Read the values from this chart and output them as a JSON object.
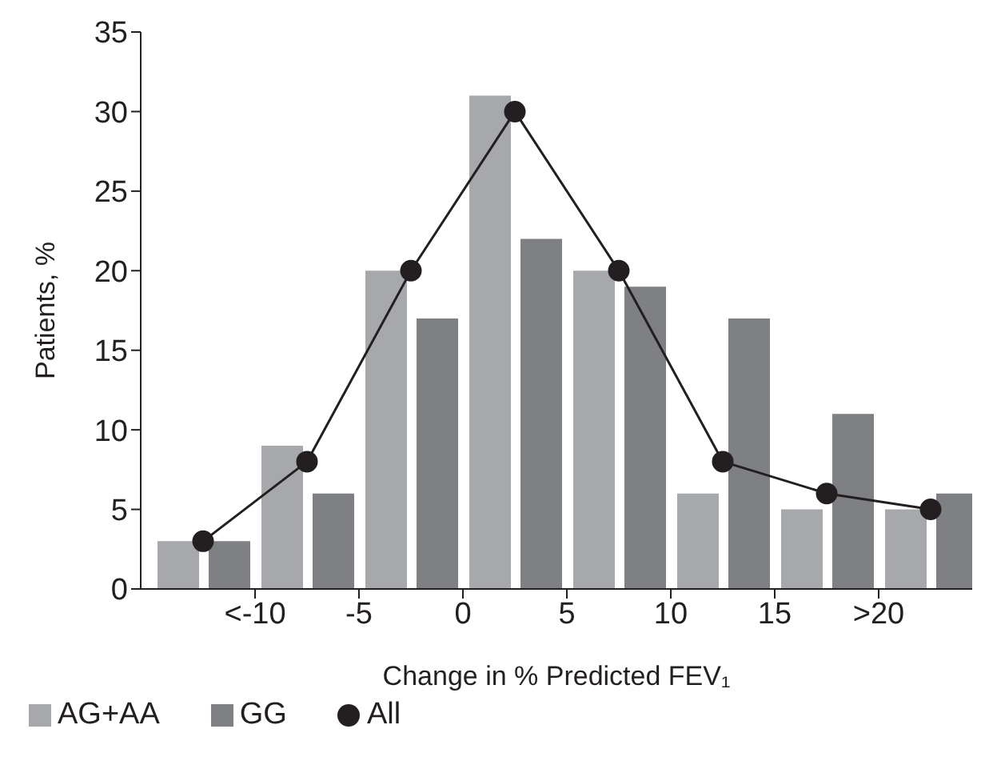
{
  "chart_data": {
    "type": "bar",
    "xlabel": "Change in % Predicted FEV₁",
    "ylabel": "Patients, %",
    "x": [
      -12.5,
      -7.5,
      -2.5,
      2.5,
      7.5,
      12.5,
      17.5,
      22.5
    ],
    "xlim": [
      -15.5,
      24.5
    ],
    "xticks": [
      {
        "value": -10,
        "label": "<-10"
      },
      -5,
      0,
      5,
      10,
      15,
      {
        "value": 20,
        "label": ">20"
      }
    ],
    "ylim": [
      0,
      35
    ],
    "yticks": [
      0,
      5,
      10,
      15,
      20,
      25,
      30,
      35
    ],
    "series": [
      {
        "name": "AG+AA",
        "color": "#a7a8ac",
        "values": [
          3,
          9,
          20,
          31,
          20,
          6,
          5,
          5
        ]
      },
      {
        "name": "GG",
        "color": "#7f8084",
        "values": [
          3,
          6,
          17,
          22,
          19,
          17,
          11,
          6
        ]
      },
      {
        "name": "All",
        "type": "line",
        "color": "#231f20",
        "values": [
          3,
          8,
          20,
          30,
          20,
          8,
          6,
          5
        ]
      }
    ],
    "marker": "circle",
    "line_style": "solid",
    "grid": false,
    "legend": "bottom left"
  }
}
